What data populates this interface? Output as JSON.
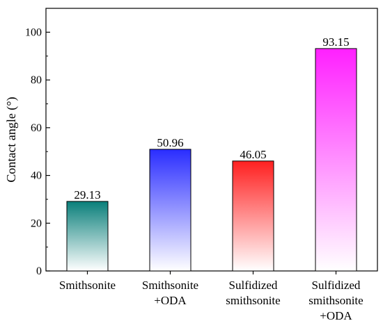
{
  "chart_data": {
    "type": "bar",
    "title": "",
    "xlabel": "",
    "ylabel": "Contact angle (°)",
    "ylim": [
      0,
      110
    ],
    "yticks": [
      0,
      20,
      40,
      60,
      80,
      100
    ],
    "grid": false,
    "legend": "none",
    "categories": [
      [
        "Smithsonite"
      ],
      [
        "Smithsonite",
        "+ODA"
      ],
      [
        "Sulfidized",
        "smithsonite"
      ],
      [
        "Sulfidized",
        "smithsonite",
        "+ODA"
      ]
    ],
    "values": [
      29.13,
      50.96,
      46.05,
      93.15
    ],
    "value_labels": [
      "29.13",
      "50.96",
      "46.05",
      "93.15"
    ],
    "bar_colors": [
      "#0a7f7a",
      "#2a2dff",
      "#ff2020",
      "#ff20ff"
    ],
    "bar_fill": "vertical gradient to white"
  }
}
